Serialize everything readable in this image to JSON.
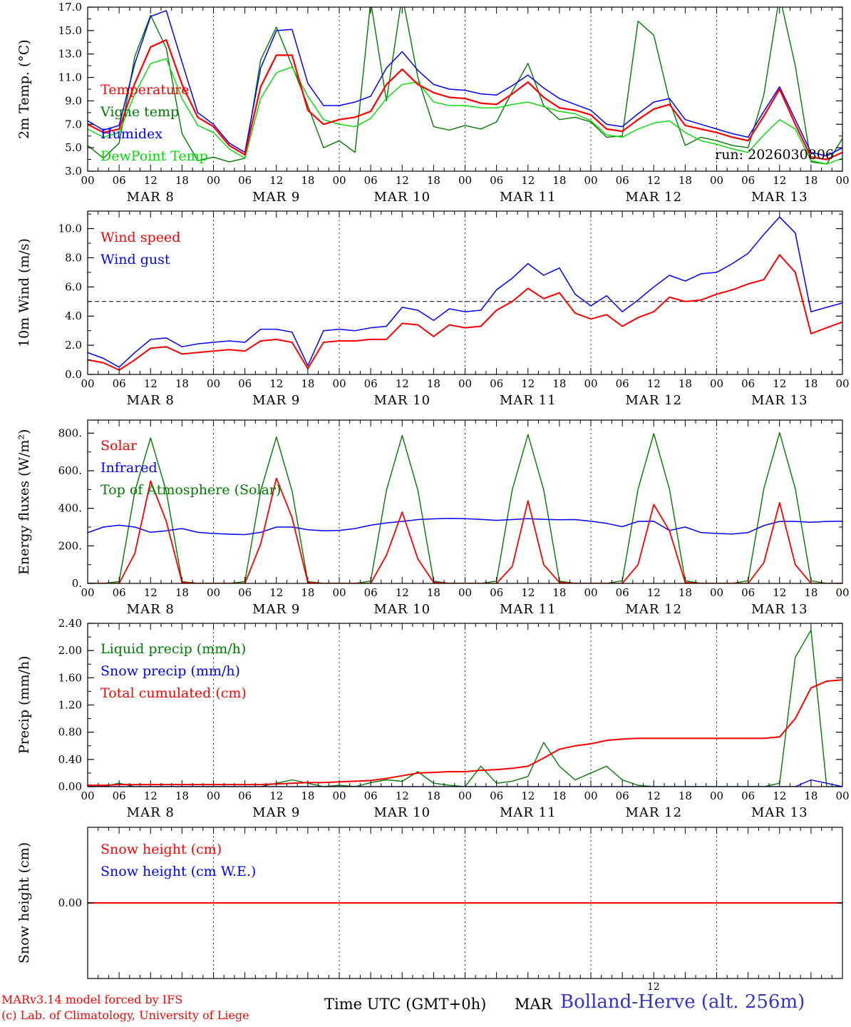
{
  "meta": {
    "run_label": "run: 2026030806",
    "stray_label": "12"
  },
  "colors": {
    "red": "#ff0000",
    "blue": "#0000ff",
    "dark_green": "#007a00",
    "light_green": "#00dd00",
    "station_blue": "#3333cc",
    "axis": "#000000"
  },
  "footer": {
    "credit_line1": "MARv3.14 model forced by IFS",
    "credit_line2": "(c) Lab. of Climatology, University of Liege",
    "time_label": "Time UTC (GMT+0h)",
    "model_label": "MAR",
    "station_label": "Bolland-Herve (alt. 256m)"
  },
  "x_axis": {
    "total_hours": 144,
    "step_hours": 3,
    "tick_labels": [
      "00",
      "06",
      "12",
      "18"
    ],
    "day_labels": [
      "MAR 8",
      "MAR 9",
      "MAR 10",
      "MAR 11",
      "MAR 12",
      "MAR 13"
    ]
  },
  "chart_data": [
    {
      "type": "line",
      "ylabel": "2m Temp. (°C)",
      "ylim": [
        3,
        17
      ],
      "ytick_values": [
        3,
        5,
        7,
        9,
        11,
        13,
        15,
        17
      ],
      "ytick_labels": [
        "3.0",
        "5.0",
        "7.0",
        "9.0",
        "11.0",
        "13.0",
        "15.0",
        "17.0"
      ],
      "yminor": 1,
      "legend": [
        {
          "label": "Temperature",
          "color": "#ff0000"
        },
        {
          "label": "Vigne temp",
          "color": "#007a00"
        },
        {
          "label": "Humidex",
          "color": "#0000ff"
        },
        {
          "label": "DewPoint Temp",
          "color": "#00dd00"
        }
      ],
      "series": [
        {
          "name": "Vigne temp",
          "color": "#007a00",
          "width": 1.4,
          "values": [
            5.2,
            4.1,
            5.4,
            12.8,
            16.3,
            13.5,
            6.2,
            3.9,
            4.2,
            3.8,
            4.1,
            12.5,
            15.3,
            12.0,
            8.6,
            5.0,
            5.6,
            4.6,
            17.5,
            9.0,
            18.0,
            11.0,
            6.8,
            6.5,
            6.9,
            6.6,
            7.2,
            9.8,
            12.2,
            8.6,
            7.4,
            7.6,
            7.2,
            5.9,
            6.0,
            15.8,
            14.6,
            9.0,
            5.2,
            5.9,
            5.6,
            5.2,
            5.0,
            9.5,
            18.0,
            12.0,
            3.8,
            3.6,
            5.8
          ]
        },
        {
          "name": "DewPoint Temp",
          "color": "#00dd00",
          "width": 1.4,
          "values": [
            6.6,
            5.9,
            6.3,
            9.6,
            12.2,
            12.6,
            9.2,
            6.9,
            6.3,
            4.9,
            4.1,
            9.2,
            11.4,
            11.9,
            9.4,
            7.4,
            7.0,
            6.8,
            7.5,
            9.2,
            10.4,
            10.6,
            8.9,
            8.6,
            8.6,
            8.4,
            8.4,
            8.7,
            8.9,
            8.5,
            8.1,
            7.9,
            7.3,
            6.1,
            5.9,
            6.6,
            7.1,
            7.3,
            6.3,
            5.6,
            5.3,
            4.9,
            4.6,
            6.1,
            7.4,
            6.6,
            3.9,
            3.6,
            4.1
          ]
        },
        {
          "name": "Humidex",
          "color": "#0000ff",
          "width": 1.5,
          "values": [
            7.3,
            6.5,
            6.9,
            12.2,
            16.2,
            16.7,
            12.3,
            8.0,
            7.0,
            5.4,
            4.6,
            11.8,
            15.0,
            15.1,
            10.5,
            8.6,
            8.6,
            8.9,
            9.4,
            11.8,
            13.2,
            11.6,
            10.4,
            10.0,
            9.9,
            9.6,
            9.5,
            10.3,
            11.2,
            10.1,
            9.2,
            8.7,
            8.2,
            7.0,
            6.8,
            7.9,
            8.9,
            9.2,
            7.4,
            7.0,
            6.6,
            6.2,
            5.9,
            8.1,
            10.2,
            7.4,
            4.6,
            4.3,
            5.0
          ]
        },
        {
          "name": "Temperature",
          "color": "#ff0000",
          "width": 2.2,
          "values": [
            7.0,
            6.3,
            6.6,
            10.5,
            13.6,
            14.2,
            10.4,
            7.6,
            6.8,
            5.2,
            4.4,
            10.2,
            12.9,
            12.9,
            8.2,
            7.0,
            7.4,
            7.6,
            8.1,
            10.4,
            11.7,
            10.4,
            9.7,
            9.3,
            9.2,
            8.8,
            8.7,
            9.6,
            10.6,
            9.3,
            8.4,
            8.2,
            7.8,
            6.6,
            6.4,
            7.4,
            8.3,
            8.7,
            6.9,
            6.6,
            6.3,
            5.9,
            5.6,
            7.7,
            10.0,
            7.0,
            4.2,
            4.0,
            4.6
          ]
        }
      ]
    },
    {
      "type": "line",
      "ylabel": "10m Wind (m/s)",
      "ylim": [
        0,
        11.2
      ],
      "ytick_values": [
        0,
        2,
        4,
        6,
        8,
        10
      ],
      "ytick_labels": [
        "0.0",
        "2.0",
        "4.0",
        "6.0",
        "8.0",
        "10.0"
      ],
      "yminor": 1,
      "hline": 5.0,
      "legend": [
        {
          "label": "Wind speed",
          "color": "#ff0000"
        },
        {
          "label": "Wind gust",
          "color": "#0000ff"
        }
      ],
      "series": [
        {
          "name": "Wind gust",
          "color": "#0000ff",
          "width": 1.5,
          "values": [
            1.5,
            1.1,
            0.5,
            1.5,
            2.4,
            2.5,
            1.9,
            2.1,
            2.2,
            2.3,
            2.2,
            3.1,
            3.1,
            2.9,
            0.6,
            3.0,
            3.1,
            3.0,
            3.2,
            3.3,
            4.6,
            4.4,
            3.7,
            4.5,
            4.3,
            4.4,
            5.8,
            6.6,
            7.6,
            6.8,
            7.3,
            5.5,
            4.7,
            5.4,
            4.3,
            5.1,
            6.0,
            6.8,
            6.4,
            6.9,
            7.0,
            7.6,
            8.3,
            9.6,
            10.8,
            9.7,
            4.3,
            4.6,
            4.9
          ]
        },
        {
          "name": "Wind speed",
          "color": "#ff0000",
          "width": 2.0,
          "values": [
            1.0,
            0.8,
            0.3,
            1.0,
            1.8,
            1.9,
            1.4,
            1.5,
            1.6,
            1.7,
            1.6,
            2.3,
            2.4,
            2.2,
            0.4,
            2.2,
            2.3,
            2.3,
            2.4,
            2.4,
            3.5,
            3.4,
            2.6,
            3.4,
            3.2,
            3.3,
            4.4,
            5.0,
            5.9,
            5.2,
            5.6,
            4.2,
            3.8,
            4.1,
            3.3,
            3.9,
            4.3,
            5.3,
            5.0,
            5.1,
            5.5,
            5.8,
            6.2,
            6.5,
            8.2,
            7.0,
            2.8,
            3.2,
            3.6
          ]
        }
      ]
    },
    {
      "type": "line",
      "ylabel": "Energy fluxes (W/m²)",
      "ylim": [
        0,
        870
      ],
      "ytick_values": [
        0,
        200,
        400,
        600,
        800
      ],
      "ytick_labels": [
        "0.",
        "200.",
        "400.",
        "600.",
        "800."
      ],
      "yminor": 100,
      "legend": [
        {
          "label": "Solar",
          "color": "#ff0000"
        },
        {
          "label": "Infrared",
          "color": "#0000ff"
        },
        {
          "label": "Top of Atmosphere (Solar)",
          "color": "#007a00"
        }
      ],
      "series": [
        {
          "name": "Top of Atmosphere (Solar)",
          "color": "#007a00",
          "width": 1.4,
          "values": [
            0,
            0,
            10,
            490,
            775,
            490,
            10,
            0,
            0,
            0,
            10,
            492,
            780,
            492,
            10,
            0,
            0,
            0,
            12,
            496,
            788,
            496,
            12,
            0,
            0,
            0,
            12,
            499,
            793,
            499,
            12,
            0,
            0,
            0,
            14,
            502,
            798,
            502,
            14,
            0,
            0,
            0,
            14,
            505,
            803,
            505,
            14,
            0,
            0
          ]
        },
        {
          "name": "Infrared",
          "color": "#0000ff",
          "width": 1.5,
          "values": [
            270,
            300,
            310,
            300,
            272,
            280,
            292,
            272,
            266,
            262,
            260,
            272,
            300,
            300,
            286,
            280,
            282,
            292,
            310,
            322,
            330,
            340,
            344,
            346,
            345,
            341,
            336,
            340,
            345,
            341,
            339,
            340,
            331,
            320,
            302,
            330,
            331,
            282,
            300,
            271,
            266,
            263,
            271,
            308,
            330,
            330,
            326,
            330,
            331
          ]
        },
        {
          "name": "Solar",
          "color": "#ff0000",
          "width": 1.8,
          "values": [
            0,
            0,
            0,
            160,
            545,
            330,
            5,
            0,
            0,
            0,
            0,
            210,
            560,
            350,
            5,
            0,
            0,
            0,
            0,
            150,
            380,
            130,
            5,
            0,
            0,
            0,
            0,
            90,
            440,
            100,
            5,
            0,
            0,
            0,
            0,
            100,
            420,
            280,
            5,
            0,
            0,
            0,
            0,
            110,
            430,
            100,
            0,
            0,
            0
          ]
        }
      ]
    },
    {
      "type": "line",
      "ylabel": "Precip (mm/h)",
      "ylim": [
        0,
        2.4
      ],
      "ytick_values": [
        0,
        0.4,
        0.8,
        1.2,
        1.6,
        2.0,
        2.4
      ],
      "ytick_labels": [
        "0.00",
        "0.40",
        "0.80",
        "1.20",
        "1.60",
        "2.00",
        "2.40"
      ],
      "yminor": 0.2,
      "legend": [
        {
          "label": "Liquid precip (mm/h)",
          "color": "#007a00"
        },
        {
          "label": "Snow precip (mm/h)",
          "color": "#0000ff"
        },
        {
          "label": "Total cumulated (cm)",
          "color": "#ff0000"
        }
      ],
      "series": [
        {
          "name": "Liquid precip (mm/h)",
          "color": "#007a00",
          "width": 1.4,
          "values": [
            0,
            0,
            0.05,
            0,
            0,
            0,
            0,
            0,
            0,
            0,
            0,
            0,
            0.05,
            0.1,
            0.05,
            0,
            0.02,
            0,
            0.06,
            0.1,
            0.08,
            0.22,
            0.05,
            0.02,
            0,
            0.3,
            0.05,
            0.08,
            0.15,
            0.65,
            0.3,
            0.1,
            0.2,
            0.3,
            0.1,
            0.02,
            0,
            0,
            0,
            0,
            0,
            0,
            0,
            0,
            0.05,
            1.9,
            2.3,
            0,
            0
          ]
        },
        {
          "name": "Snow precip (mm/h)",
          "color": "#0000ff",
          "width": 1.4,
          "values": [
            0,
            0,
            0,
            0,
            0,
            0,
            0,
            0,
            0,
            0,
            0,
            0,
            0,
            0,
            0,
            0,
            0,
            0,
            0,
            0,
            0,
            0,
            0,
            0,
            0,
            0,
            0,
            0,
            0,
            0,
            0,
            0,
            0,
            0,
            0,
            0,
            0,
            0,
            0,
            0,
            0,
            0,
            0,
            0,
            0,
            0,
            0.1,
            0.05,
            0
          ]
        },
        {
          "name": "Total cumulated (cm)",
          "color": "#ff0000",
          "width": 2.0,
          "values": [
            0.02,
            0.02,
            0.03,
            0.03,
            0.03,
            0.03,
            0.03,
            0.03,
            0.03,
            0.03,
            0.03,
            0.03,
            0.04,
            0.05,
            0.06,
            0.06,
            0.07,
            0.08,
            0.09,
            0.12,
            0.16,
            0.2,
            0.21,
            0.22,
            0.22,
            0.24,
            0.25,
            0.27,
            0.3,
            0.42,
            0.55,
            0.6,
            0.63,
            0.68,
            0.7,
            0.71,
            0.71,
            0.71,
            0.71,
            0.71,
            0.71,
            0.71,
            0.71,
            0.71,
            0.73,
            1.0,
            1.45,
            1.55,
            1.57
          ]
        }
      ]
    },
    {
      "type": "line",
      "ylabel": "Snow height (cm)",
      "ylim": [
        -1,
        1
      ],
      "ytick_values": [
        0
      ],
      "ytick_labels": [
        "0.00"
      ],
      "yminor": null,
      "legend": [
        {
          "label": "Snow height (cm)",
          "color": "#ff0000"
        },
        {
          "label": "Snow height (cm W.E.)",
          "color": "#0000ff"
        }
      ],
      "series": [
        {
          "name": "Snow height (cm W.E.)",
          "color": "#0000ff",
          "width": 1.5,
          "values": [
            0,
            0
          ]
        },
        {
          "name": "Snow height (cm)",
          "color": "#ff0000",
          "width": 2.0,
          "values": [
            0,
            0
          ]
        }
      ]
    }
  ]
}
